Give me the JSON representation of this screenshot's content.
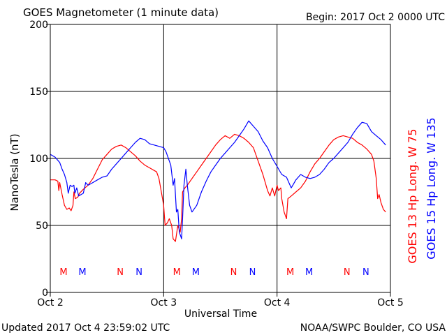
{
  "chart_data": {
    "type": "line",
    "title": "GOES Magnetometer (1 minute data)",
    "begin_text": "Begin:  2017 Oct 2 0000 UTC",
    "xlabel": "Universal Time",
    "ylabel": "NanoTesla (nT)",
    "x_unit": "hours since begin",
    "xlim": [
      0,
      72
    ],
    "ylim": [
      0,
      200
    ],
    "y_ticks": [
      0,
      50,
      100,
      150,
      200
    ],
    "x_ticks": [
      {
        "x": 0,
        "label": "Oct 2"
      },
      {
        "x": 24,
        "label": "Oct 3"
      },
      {
        "x": 48,
        "label": "Oct 4"
      },
      {
        "x": 72,
        "label": "Oct 5"
      }
    ],
    "grid": true,
    "legend_position": "right",
    "series": [
      {
        "name": "GOES 13 Hp  Long. W 75",
        "color": "#ff0000",
        "points": [
          [
            0,
            84
          ],
          [
            1,
            84
          ],
          [
            1.6,
            83
          ],
          [
            1.8,
            76
          ],
          [
            2,
            82
          ],
          [
            2.5,
            73
          ],
          [
            3,
            65
          ],
          [
            3.5,
            62
          ],
          [
            4,
            63
          ],
          [
            4.4,
            61
          ],
          [
            4.8,
            65
          ],
          [
            5,
            75
          ],
          [
            5.3,
            70
          ],
          [
            5.8,
            71
          ],
          [
            6.2,
            74
          ],
          [
            7,
            77
          ],
          [
            8,
            80
          ],
          [
            9,
            85
          ],
          [
            10,
            92
          ],
          [
            11,
            99
          ],
          [
            12,
            103
          ],
          [
            13,
            107
          ],
          [
            14,
            109
          ],
          [
            15,
            110
          ],
          [
            16,
            108
          ],
          [
            17,
            105
          ],
          [
            18,
            102
          ],
          [
            19,
            98
          ],
          [
            20,
            95
          ],
          [
            21,
            93
          ],
          [
            22,
            91
          ],
          [
            22.5,
            90
          ],
          [
            23,
            85
          ],
          [
            23.5,
            75
          ],
          [
            24,
            65
          ],
          [
            24.3,
            50
          ],
          [
            24.8,
            52
          ],
          [
            25.2,
            55
          ],
          [
            25.7,
            50
          ],
          [
            26,
            40
          ],
          [
            26.5,
            38
          ],
          [
            27,
            50
          ],
          [
            27.5,
            45
          ],
          [
            27.8,
            55
          ],
          [
            28,
            75
          ],
          [
            28.5,
            78
          ],
          [
            29,
            80
          ],
          [
            30,
            85
          ],
          [
            31,
            90
          ],
          [
            32,
            95
          ],
          [
            33,
            100
          ],
          [
            34,
            105
          ],
          [
            35,
            110
          ],
          [
            36,
            114
          ],
          [
            37,
            117
          ],
          [
            38,
            115
          ],
          [
            39,
            118
          ],
          [
            40,
            117
          ],
          [
            41,
            115
          ],
          [
            42,
            112
          ],
          [
            43,
            108
          ],
          [
            44,
            98
          ],
          [
            45,
            88
          ],
          [
            46,
            76
          ],
          [
            46.5,
            72
          ],
          [
            47,
            78
          ],
          [
            47.5,
            72
          ],
          [
            48,
            80
          ],
          [
            48.3,
            76
          ],
          [
            48.8,
            78
          ],
          [
            49,
            70
          ],
          [
            49.5,
            60
          ],
          [
            50,
            55
          ],
          [
            50.3,
            70
          ],
          [
            51,
            72
          ],
          [
            52,
            75
          ],
          [
            53,
            78
          ],
          [
            54,
            83
          ],
          [
            55,
            90
          ],
          [
            56,
            96
          ],
          [
            57,
            100
          ],
          [
            58,
            105
          ],
          [
            59,
            110
          ],
          [
            60,
            114
          ],
          [
            61,
            116
          ],
          [
            62,
            117
          ],
          [
            63,
            116
          ],
          [
            64,
            115
          ],
          [
            65,
            112
          ],
          [
            66,
            110
          ],
          [
            67,
            107
          ],
          [
            68,
            103
          ],
          [
            68.5,
            98
          ],
          [
            69,
            85
          ],
          [
            69.3,
            70
          ],
          [
            69.6,
            73
          ],
          [
            70,
            67
          ],
          [
            70.5,
            62
          ],
          [
            71,
            60
          ]
        ]
      },
      {
        "name": "GOES 15 Hp  Long. W 135",
        "color": "#0000ff",
        "points": [
          [
            0,
            103
          ],
          [
            1,
            101
          ],
          [
            2,
            97
          ],
          [
            2.5,
            92
          ],
          [
            3,
            88
          ],
          [
            3.5,
            82
          ],
          [
            3.8,
            74
          ],
          [
            4.2,
            80
          ],
          [
            4.6,
            79
          ],
          [
            5,
            80
          ],
          [
            5.2,
            74
          ],
          [
            5.6,
            78
          ],
          [
            6,
            72
          ],
          [
            7,
            74
          ],
          [
            7.5,
            82
          ],
          [
            8,
            80
          ],
          [
            9,
            82
          ],
          [
            10,
            84
          ],
          [
            11,
            86
          ],
          [
            12,
            87
          ],
          [
            13,
            92
          ],
          [
            14,
            96
          ],
          [
            15,
            100
          ],
          [
            16,
            104
          ],
          [
            17,
            108
          ],
          [
            18,
            112
          ],
          [
            19,
            115
          ],
          [
            20,
            114
          ],
          [
            21,
            111
          ],
          [
            22,
            110
          ],
          [
            23,
            109
          ],
          [
            24,
            108
          ],
          [
            24.5,
            105
          ],
          [
            25,
            100
          ],
          [
            25.5,
            95
          ],
          [
            26,
            80
          ],
          [
            26.3,
            85
          ],
          [
            26.7,
            60
          ],
          [
            27,
            62
          ],
          [
            27.3,
            45
          ],
          [
            27.8,
            40
          ],
          [
            28,
            55
          ],
          [
            28.3,
            80
          ],
          [
            28.7,
            92
          ],
          [
            29,
            80
          ],
          [
            29.5,
            65
          ],
          [
            30,
            60
          ],
          [
            31,
            65
          ],
          [
            32,
            75
          ],
          [
            33,
            83
          ],
          [
            34,
            90
          ],
          [
            35,
            95
          ],
          [
            36,
            100
          ],
          [
            37,
            104
          ],
          [
            38,
            108
          ],
          [
            39,
            112
          ],
          [
            40,
            117
          ],
          [
            41,
            122
          ],
          [
            42,
            128
          ],
          [
            43,
            124
          ],
          [
            44,
            120
          ],
          [
            45,
            113
          ],
          [
            46,
            108
          ],
          [
            47,
            100
          ],
          [
            48,
            94
          ],
          [
            49,
            88
          ],
          [
            50,
            86
          ],
          [
            50.5,
            82
          ],
          [
            51,
            78
          ],
          [
            52,
            84
          ],
          [
            53,
            88
          ],
          [
            54,
            86
          ],
          [
            55,
            85
          ],
          [
            56,
            86
          ],
          [
            57,
            88
          ],
          [
            58,
            92
          ],
          [
            59,
            97
          ],
          [
            60,
            100
          ],
          [
            61,
            104
          ],
          [
            62,
            108
          ],
          [
            63,
            112
          ],
          [
            64,
            118
          ],
          [
            65,
            123
          ],
          [
            66,
            127
          ],
          [
            67,
            126
          ],
          [
            68,
            120
          ],
          [
            69,
            117
          ],
          [
            70,
            114
          ],
          [
            71,
            110
          ]
        ]
      }
    ],
    "annotations": [
      {
        "label": "M",
        "x": 2.8,
        "color": "#ff0000"
      },
      {
        "label": "M",
        "x": 6.8,
        "color": "#0000ff"
      },
      {
        "label": "N",
        "x": 14.8,
        "color": "#ff0000"
      },
      {
        "label": "N",
        "x": 18.8,
        "color": "#0000ff"
      },
      {
        "label": "M",
        "x": 26.8,
        "color": "#ff0000"
      },
      {
        "label": "M",
        "x": 30.8,
        "color": "#0000ff"
      },
      {
        "label": "N",
        "x": 38.8,
        "color": "#ff0000"
      },
      {
        "label": "N",
        "x": 42.8,
        "color": "#0000ff"
      },
      {
        "label": "M",
        "x": 50.8,
        "color": "#ff0000"
      },
      {
        "label": "M",
        "x": 54.8,
        "color": "#0000ff"
      },
      {
        "label": "N",
        "x": 62.8,
        "color": "#ff0000"
      },
      {
        "label": "N",
        "x": 66.8,
        "color": "#0000ff"
      }
    ]
  },
  "footer": {
    "updated": "Updated 2017 Oct  4 23:59:02 UTC",
    "source": "NOAA/SWPC Boulder, CO USA"
  }
}
